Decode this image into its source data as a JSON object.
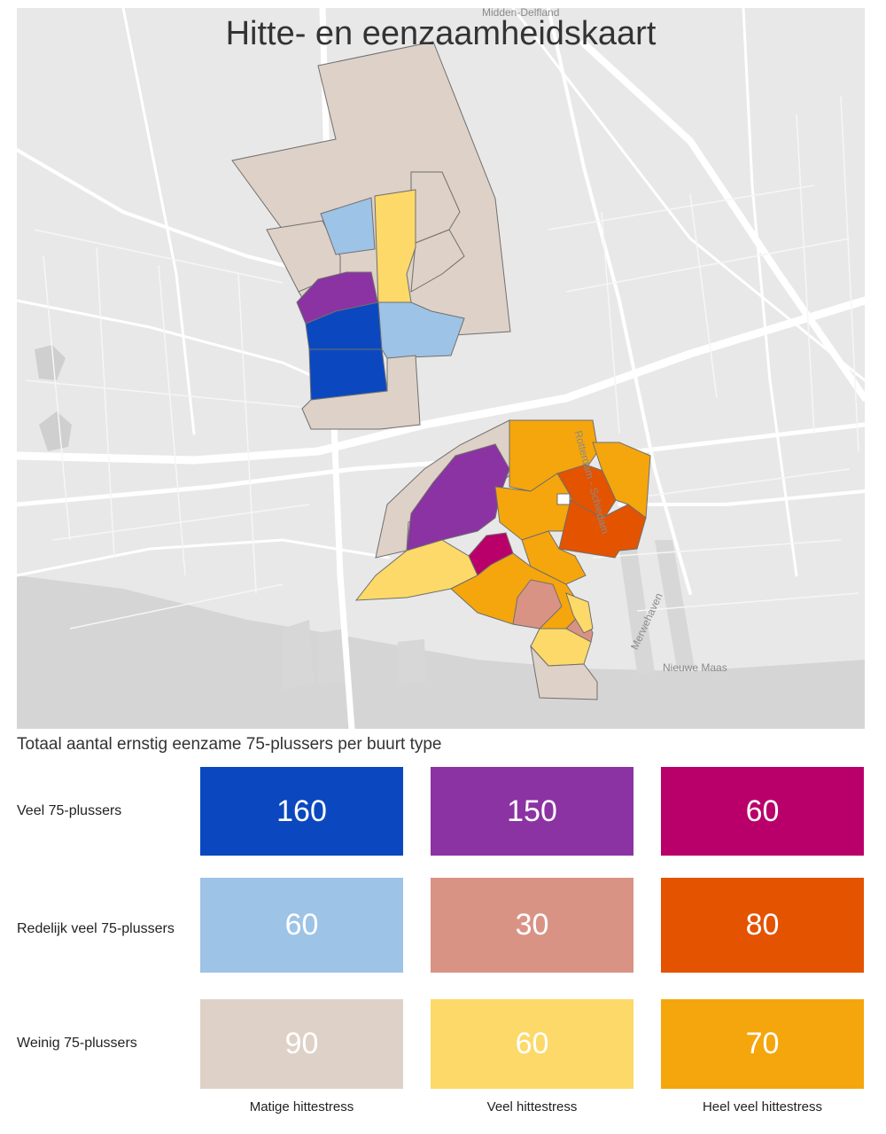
{
  "map": {
    "title": "Hitte- en eenzaamheidskaart",
    "place_labels": {
      "midden_delfland": "Midden-Delfland",
      "rotterdam_schiedam": "Rotterdam - Schiedam",
      "merwehaven": "Merwehaven",
      "nieuwe_maas": "Nieuwe Maas"
    }
  },
  "legend": {
    "title": "Totaal aantal ernstig eenzame 75-plussers per buurt type",
    "rows": [
      "Veel 75-plussers",
      "Redelijk veel 75-plussers",
      "Weinig 75-plussers"
    ],
    "columns": [
      "Matige hittestress",
      "Veel hittestress",
      "Heel veel hittestress"
    ],
    "cells": [
      [
        {
          "value": "160",
          "color": "#0b48bf"
        },
        {
          "value": "150",
          "color": "#8b33a2"
        },
        {
          "value": "60",
          "color": "#b9006a"
        }
      ],
      [
        {
          "value": "60",
          "color": "#9dc3e6"
        },
        {
          "value": "30",
          "color": "#d99385"
        },
        {
          "value": "80",
          "color": "#e35300"
        }
      ],
      [
        {
          "value": "90",
          "color": "#ded1c7"
        },
        {
          "value": "60",
          "color": "#fcd968"
        },
        {
          "value": "70",
          "color": "#f5a60c"
        }
      ]
    ]
  }
}
